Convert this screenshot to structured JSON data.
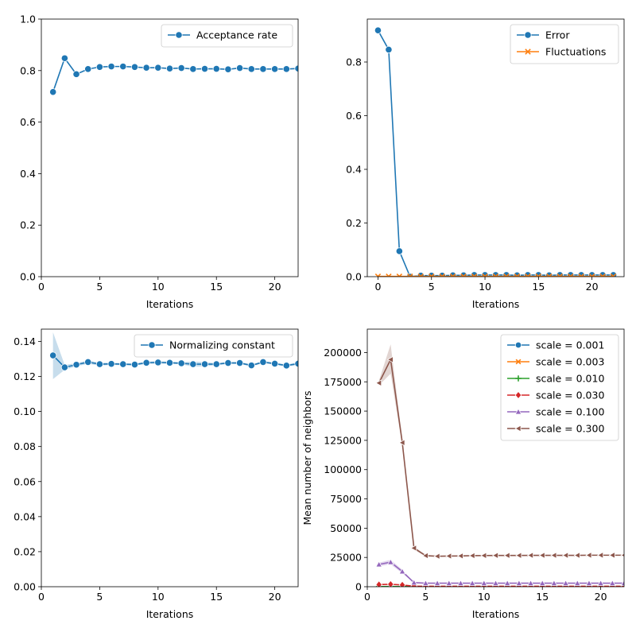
{
  "figure": {
    "charts": [
      {
        "type": "line",
        "xlabel": "Iterations",
        "ylabel": "",
        "xlim": [
          0.0,
          22.0
        ],
        "ylim": [
          0,
          1.0
        ],
        "xticks": [
          0,
          5,
          10,
          15,
          20
        ],
        "yticks": [
          0.0,
          0.2,
          0.4,
          0.6,
          0.8,
          1.0
        ],
        "ytick_labels": [
          "0.0",
          "0.2",
          "0.4",
          "0.6",
          "0.8",
          "1.0"
        ],
        "legend": "top-right",
        "series": [
          {
            "name": "Acceptance rate",
            "color": "#1f77b4",
            "marker": "circle",
            "x": [
              1,
              2,
              3,
              4,
              5,
              6,
              7,
              8,
              9,
              10,
              11,
              12,
              13,
              14,
              15,
              16,
              17,
              18,
              19,
              20,
              21,
              22
            ],
            "values": [
              0.717,
              0.848,
              0.786,
              0.806,
              0.814,
              0.816,
              0.816,
              0.814,
              0.811,
              0.811,
              0.808,
              0.81,
              0.806,
              0.807,
              0.807,
              0.805,
              0.81,
              0.806,
              0.806,
              0.806,
              0.806,
              0.808
            ]
          }
        ]
      },
      {
        "type": "line",
        "xlabel": "Iterations",
        "ylabel": "",
        "xlim": [
          -1.0,
          23.0
        ],
        "ylim": [
          0,
          0.96
        ],
        "xticks": [
          0,
          5,
          10,
          15,
          20
        ],
        "yticks": [
          0.0,
          0.2,
          0.4,
          0.6,
          0.8
        ],
        "ytick_labels": [
          "0.0",
          "0.2",
          "0.4",
          "0.6",
          "0.8"
        ],
        "legend": "top-right",
        "series": [
          {
            "name": "Error",
            "color": "#1f77b4",
            "marker": "circle",
            "x": [
              0,
              1,
              2,
              3,
              4,
              5,
              6,
              7,
              8,
              9,
              10,
              11,
              12,
              13,
              14,
              15,
              16,
              17,
              18,
              19,
              20,
              21,
              22
            ],
            "values": [
              0.918,
              0.846,
              0.095,
              0.0,
              0.004,
              0.004,
              0.004,
              0.005,
              0.005,
              0.006,
              0.006,
              0.006,
              0.006,
              0.005,
              0.006,
              0.006,
              0.005,
              0.006,
              0.006,
              0.006,
              0.006,
              0.006,
              0.006
            ]
          },
          {
            "name": "Fluctuations",
            "color": "#ff7f0e",
            "marker": "x",
            "x": [
              0,
              1,
              2,
              3,
              4,
              5,
              6,
              7,
              8,
              9,
              10,
              11,
              12,
              13,
              14,
              15,
              16,
              17,
              18,
              19,
              20,
              21,
              22
            ],
            "values": [
              0.001,
              0.001,
              0.001,
              0.001,
              0.001,
              0.001,
              0.001,
              0.001,
              0.001,
              0.001,
              0.001,
              0.001,
              0.001,
              0.001,
              0.001,
              0.001,
              0.001,
              0.001,
              0.001,
              0.001,
              0.001,
              0.001,
              0.001
            ]
          }
        ]
      },
      {
        "type": "line",
        "xlabel": "Iterations",
        "ylabel": "",
        "xlim": [
          0.0,
          22.0
        ],
        "ylim": [
          0,
          0.147
        ],
        "xticks": [
          0,
          5,
          10,
          15,
          20
        ],
        "yticks": [
          0.0,
          0.02,
          0.04,
          0.06,
          0.08,
          0.1,
          0.12,
          0.14
        ],
        "ytick_labels": [
          "0.00",
          "0.02",
          "0.04",
          "0.06",
          "0.08",
          "0.10",
          "0.12",
          "0.14"
        ],
        "legend": "top-right",
        "series": [
          {
            "name": "Normalizing constant",
            "color": "#1f77b4",
            "marker": "circle",
            "x": [
              1,
              2,
              3,
              4,
              5,
              6,
              7,
              8,
              9,
              10,
              11,
              12,
              13,
              14,
              15,
              16,
              17,
              18,
              19,
              20,
              21,
              22
            ],
            "values": [
              0.132,
              0.1252,
              0.1267,
              0.1282,
              0.127,
              0.1272,
              0.127,
              0.1268,
              0.1278,
              0.128,
              0.1278,
              0.1275,
              0.127,
              0.127,
              0.127,
              0.1277,
              0.1277,
              0.1263,
              0.1282,
              0.1273,
              0.1262,
              0.1273
            ],
            "ci_low": [
              0.1185,
              0.1238,
              0.1258,
              0.1272,
              0.1262,
              0.1265,
              0.1264,
              0.1262,
              0.1271,
              0.1273,
              0.1272,
              0.1269,
              0.1255,
              0.1258,
              0.1264,
              0.1271,
              0.1271,
              0.1257,
              0.1276,
              0.1267,
              0.1256,
              0.1265
            ],
            "ci_high": [
              0.1452,
              0.1266,
              0.1276,
              0.1292,
              0.1278,
              0.1279,
              0.1276,
              0.1274,
              0.1285,
              0.1287,
              0.1284,
              0.1281,
              0.1285,
              0.1282,
              0.1276,
              0.1283,
              0.1283,
              0.1269,
              0.1288,
              0.1279,
              0.1268,
              0.1281
            ]
          }
        ]
      },
      {
        "type": "line",
        "xlabel": "Iterations",
        "ylabel": "Mean number of neighbors",
        "xlim": [
          0.0,
          22.0
        ],
        "ylim": [
          0,
          220000
        ],
        "xticks": [
          0,
          5,
          10,
          15,
          20
        ],
        "yticks": [
          0,
          25000,
          50000,
          75000,
          100000,
          125000,
          150000,
          175000,
          200000
        ],
        "ytick_labels": [
          "0",
          "25000",
          "50000",
          "75000",
          "100000",
          "125000",
          "150000",
          "175000",
          "200000"
        ],
        "legend": "top-right",
        "series": [
          {
            "name": "scale = 0.001",
            "color": "#1f77b4",
            "marker": "circle",
            "x": [
              1,
              2,
              3,
              4,
              5,
              6,
              7,
              8,
              9,
              10,
              11,
              12,
              13,
              14,
              15,
              16,
              17,
              18,
              19,
              20,
              21,
              22
            ],
            "values": [
              5,
              5,
              5,
              5,
              5,
              5,
              5,
              5,
              5,
              5,
              5,
              5,
              5,
              5,
              5,
              5,
              5,
              5,
              5,
              5,
              5,
              5
            ]
          },
          {
            "name": "scale = 0.003",
            "color": "#ff7f0e",
            "marker": "x",
            "x": [
              1,
              2,
              3,
              4,
              5,
              6,
              7,
              8,
              9,
              10,
              11,
              12,
              13,
              14,
              15,
              16,
              17,
              18,
              19,
              20,
              21,
              22
            ],
            "values": [
              20,
              20,
              20,
              20,
              20,
              20,
              20,
              20,
              20,
              20,
              20,
              20,
              20,
              20,
              20,
              20,
              20,
              20,
              20,
              20,
              20,
              20
            ]
          },
          {
            "name": "scale = 0.010",
            "color": "#2ca02c",
            "marker": "plus",
            "x": [
              1,
              2,
              3,
              4,
              5,
              6,
              7,
              8,
              9,
              10,
              11,
              12,
              13,
              14,
              15,
              16,
              17,
              18,
              19,
              20,
              21,
              22
            ],
            "values": [
              150,
              170,
              140,
              60,
              50,
              50,
              50,
              50,
              50,
              50,
              50,
              50,
              50,
              50,
              50,
              50,
              50,
              50,
              50,
              50,
              50,
              50
            ]
          },
          {
            "name": "scale = 0.030",
            "color": "#d62728",
            "marker": "diamond",
            "x": [
              1,
              2,
              3,
              4,
              5,
              6,
              7,
              8,
              9,
              10,
              11,
              12,
              13,
              14,
              15,
              16,
              17,
              18,
              19,
              20,
              21,
              22
            ],
            "values": [
              1800,
              2100,
              1500,
              450,
              380,
              380,
              380,
              380,
              380,
              380,
              380,
              380,
              380,
              380,
              380,
              380,
              380,
              380,
              380,
              380,
              380,
              380
            ]
          },
          {
            "name": "scale = 0.100",
            "color": "#9467bd",
            "marker": "triangle-up",
            "x": [
              1,
              2,
              3,
              4,
              5,
              6,
              7,
              8,
              9,
              10,
              11,
              12,
              13,
              14,
              15,
              16,
              17,
              18,
              19,
              20,
              21,
              22
            ],
            "values": [
              19000,
              21000,
              13000,
              3500,
              3000,
              3000,
              3000,
              3000,
              3000,
              3000,
              3000,
              3000,
              3000,
              3000,
              3000,
              3000,
              3000,
              3000,
              3000,
              3000,
              3000,
              3000
            ],
            "ci_low": [
              17500,
              19000,
              11500,
              3200,
              2900,
              2900,
              2900,
              2900,
              2900,
              2900,
              2900,
              2900,
              2900,
              2900,
              2900,
              2900,
              2900,
              2900,
              2900,
              2900,
              2900,
              2900
            ],
            "ci_high": [
              20500,
              23000,
              14500,
              3800,
              3100,
              3100,
              3100,
              3100,
              3100,
              3100,
              3100,
              3100,
              3100,
              3100,
              3100,
              3100,
              3100,
              3100,
              3100,
              3100,
              3100,
              3100
            ]
          },
          {
            "name": "scale = 0.300",
            "color": "#8c564b",
            "marker": "triangle-left",
            "x": [
              1,
              2,
              3,
              4,
              5,
              6,
              7,
              8,
              9,
              10,
              11,
              12,
              13,
              14,
              15,
              16,
              17,
              18,
              19,
              20,
              21,
              22
            ],
            "values": [
              174000,
              194000,
              123000,
              33000,
              26500,
              26000,
              26200,
              26300,
              26500,
              26600,
              26700,
              26700,
              26700,
              26800,
              26800,
              26800,
              26800,
              26800,
              26900,
              26900,
              26900,
              26900
            ],
            "ci_low": [
              172000,
              182000,
              120000,
              31500,
              26000,
              25700,
              25900,
              26000,
              26200,
              26300,
              26400,
              26400,
              26400,
              26500,
              26500,
              26500,
              26500,
              26500,
              26600,
              26600,
              26600,
              26600
            ],
            "ci_high": [
              176000,
              207000,
              126000,
              34500,
              27000,
              26300,
              26500,
              26600,
              26800,
              26900,
              27000,
              27000,
              27000,
              27100,
              27100,
              27100,
              27100,
              27100,
              27200,
              27200,
              27200,
              27200
            ]
          }
        ]
      }
    ]
  }
}
